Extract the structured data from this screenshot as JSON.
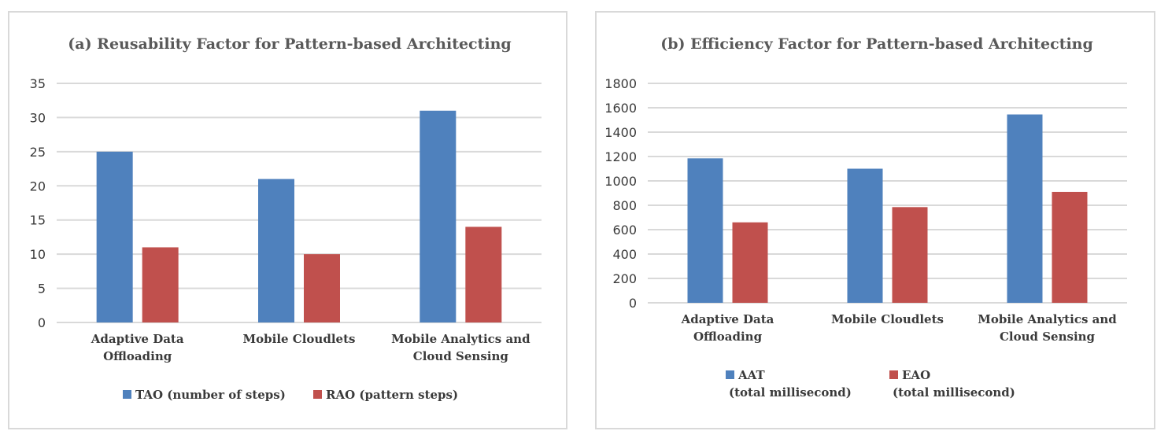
{
  "chart_data": [
    {
      "type": "bar",
      "title": "(a) Reusability Factor for Pattern-based Architecting",
      "categories": [
        [
          "Adaptive Data",
          "Offloading"
        ],
        [
          "Mobile Cloudlets"
        ],
        [
          "Mobile Analytics and",
          "Cloud Sensing"
        ]
      ],
      "series": [
        {
          "name": "TAO (number of steps)",
          "name_lines": [
            "TAO (number of steps)"
          ],
          "color": "#4f81bd",
          "values": [
            25,
            21,
            31
          ]
        },
        {
          "name": "RAO (pattern steps)",
          "name_lines": [
            "RAO (pattern steps)"
          ],
          "color": "#c0504d",
          "values": [
            11,
            10,
            14
          ]
        }
      ],
      "yticks": [
        0,
        5,
        10,
        15,
        20,
        25,
        30,
        35
      ],
      "ylim": [
        0,
        35
      ],
      "xlabel": "",
      "ylabel": "",
      "grid": true,
      "legend": "bottom"
    },
    {
      "type": "bar",
      "title": "(b) Efficiency Factor for Pattern-based Architecting",
      "categories": [
        [
          "Adaptive Data",
          "Offloading"
        ],
        [
          "Mobile Cloudlets"
        ],
        [
          "Mobile Analytics and",
          "Cloud Sensing"
        ]
      ],
      "series": [
        {
          "name": "AAT (total millisecond)",
          "name_lines": [
            "AAT",
            "(total millisecond)"
          ],
          "color": "#4f81bd",
          "values": [
            1185,
            1100,
            1545
          ]
        },
        {
          "name": "EAO (total millisecond)",
          "name_lines": [
            "EAO",
            "(total millisecond)"
          ],
          "color": "#c0504d",
          "values": [
            660,
            785,
            910
          ]
        }
      ],
      "yticks": [
        0,
        200,
        400,
        600,
        800,
        1000,
        1200,
        1400,
        1600,
        1800
      ],
      "ylim": [
        0,
        1800
      ],
      "xlabel": "",
      "ylabel": "",
      "grid": true,
      "legend": "bottom"
    }
  ]
}
